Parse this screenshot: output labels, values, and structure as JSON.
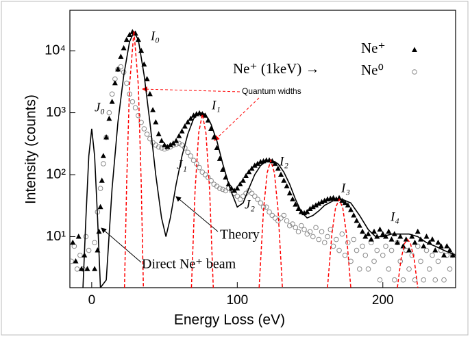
{
  "chart_data": {
    "type": "scatter",
    "x_label": "Energy Loss (eV)",
    "y_label": "Intensity (counts)",
    "xlim": [
      -15,
      250
    ],
    "ylim": [
      1.5,
      45000
    ],
    "log_y": true,
    "xticks": [
      0,
      100,
      200
    ],
    "yticks": [
      {
        "value": 10,
        "label": "10¹"
      },
      {
        "value": 100,
        "label": "10²"
      },
      {
        "value": 1000,
        "label": "10³"
      },
      {
        "value": 10000,
        "label": "10⁴"
      }
    ],
    "legend": "upper right",
    "series": [
      {
        "name": "Ne⁺",
        "marker": "triangle",
        "color": "#000000",
        "x": [
          -13,
          -11,
          -9,
          -7,
          -5,
          -3,
          2,
          4,
          5,
          6,
          7,
          8,
          10,
          12,
          14,
          16,
          18,
          20,
          22,
          24,
          26,
          28,
          30,
          32,
          34,
          36,
          38,
          40,
          42,
          44,
          46,
          48,
          50,
          52,
          54,
          56,
          58,
          60,
          62,
          64,
          66,
          68,
          70,
          72,
          74,
          76,
          78,
          80,
          82,
          84,
          86,
          88,
          90,
          92,
          94,
          96,
          98,
          100,
          102,
          104,
          106,
          108,
          110,
          112,
          114,
          116,
          118,
          120,
          122,
          124,
          126,
          128,
          130,
          132,
          134,
          136,
          138,
          140,
          142,
          144,
          146,
          148,
          150,
          152,
          154,
          156,
          158,
          160,
          162,
          164,
          166,
          168,
          170,
          172,
          174,
          176,
          178,
          180,
          182,
          184,
          186,
          188,
          190,
          192,
          194,
          196,
          198,
          200,
          202,
          204,
          206,
          208,
          210,
          212,
          214,
          216,
          218,
          220,
          222,
          224,
          226,
          228,
          230,
          232,
          234,
          236,
          238,
          240,
          242,
          244,
          246,
          248
        ],
        "values": [
          8,
          4,
          10,
          3,
          5,
          3,
          3,
          6,
          12,
          30,
          80,
          200,
          400,
          800,
          1500,
          3000,
          5000,
          8000,
          11000,
          15000,
          18000,
          20000,
          19000,
          15000,
          10000,
          6000,
          3500,
          2000,
          1100,
          700,
          450,
          350,
          300,
          280,
          300,
          320,
          350,
          420,
          500,
          600,
          700,
          800,
          900,
          950,
          980,
          950,
          900,
          750,
          550,
          400,
          270,
          180,
          120,
          90,
          70,
          60,
          55,
          60,
          70,
          80,
          95,
          110,
          125,
          140,
          150,
          160,
          165,
          170,
          170,
          165,
          150,
          125,
          100,
          80,
          65,
          50,
          40,
          33,
          28,
          25,
          24,
          25,
          28,
          30,
          32,
          34,
          36,
          38,
          40,
          41,
          42,
          40,
          42,
          38,
          35,
          32,
          27,
          22,
          18,
          15,
          12,
          10,
          11,
          9,
          12,
          10,
          13,
          11,
          10,
          12,
          9,
          11,
          8,
          10,
          7,
          9,
          6,
          10,
          8,
          12,
          9,
          7,
          10,
          8,
          9,
          6,
          8,
          7,
          5,
          7,
          6,
          5
        ]
      },
      {
        "name": "Ne⁰",
        "marker": "circle",
        "color": "#888888",
        "x": [
          -14,
          -12,
          -10,
          -8,
          -6,
          -4,
          -2,
          2,
          4,
          6,
          8,
          10,
          12,
          14,
          16,
          18,
          20,
          22,
          24,
          26,
          28,
          30,
          32,
          34,
          36,
          38,
          40,
          42,
          44,
          46,
          48,
          50,
          52,
          54,
          56,
          58,
          60,
          62,
          64,
          66,
          68,
          70,
          72,
          74,
          76,
          78,
          80,
          82,
          84,
          86,
          88,
          90,
          92,
          94,
          96,
          98,
          100,
          102,
          104,
          106,
          108,
          110,
          112,
          114,
          116,
          118,
          120,
          122,
          124,
          126,
          128,
          130,
          132,
          134,
          136,
          138,
          140,
          142,
          144,
          146,
          148,
          150,
          152,
          154,
          156,
          158,
          160,
          162,
          164,
          166,
          168,
          170,
          172,
          174,
          176,
          178,
          180,
          182,
          184,
          186,
          188,
          190,
          192,
          194,
          196,
          198,
          200,
          202,
          204,
          206,
          208,
          210,
          212,
          214,
          216,
          218,
          220,
          222,
          224,
          226,
          228,
          230,
          232,
          234,
          236,
          238,
          240,
          242,
          244,
          246,
          248
        ],
        "values": [
          4,
          7,
          3,
          5,
          3,
          10,
          6,
          8,
          25,
          60,
          150,
          400,
          1000,
          2000,
          3500,
          5000,
          5500,
          4500,
          3000,
          2000,
          1500,
          1200,
          900,
          700,
          550,
          450,
          380,
          330,
          300,
          280,
          270,
          260,
          270,
          280,
          300,
          310,
          320,
          300,
          270,
          230,
          200,
          170,
          150,
          130,
          110,
          100,
          90,
          80,
          70,
          65,
          60,
          58,
          55,
          60,
          55,
          50,
          45,
          40,
          45,
          50,
          55,
          50,
          45,
          40,
          35,
          30,
          30,
          25,
          22,
          20,
          18,
          20,
          22,
          18,
          15,
          16,
          14,
          12,
          15,
          13,
          11,
          12,
          10,
          14,
          9,
          12,
          8,
          10,
          13,
          7,
          9,
          6,
          11,
          5,
          8,
          4,
          9,
          6,
          3,
          7,
          5,
          3,
          8,
          4,
          6,
          2,
          5,
          7,
          3,
          6,
          2,
          8,
          4,
          2,
          6,
          3,
          5,
          2,
          7,
          4,
          2,
          6,
          3,
          5,
          2,
          4,
          6,
          2,
          5,
          3,
          5
        ]
      }
    ],
    "theory": {
      "color": "#000000",
      "x": [
        -6,
        -4,
        -2,
        0,
        2,
        4,
        6,
        10,
        14,
        18,
        22,
        26,
        29,
        32,
        36,
        40,
        44,
        48,
        51,
        54,
        58,
        62,
        66,
        70,
        74,
        78,
        82,
        86,
        90,
        95,
        100,
        104,
        108,
        112,
        116,
        120,
        124,
        128,
        132,
        136,
        140,
        144,
        148,
        152,
        156,
        160,
        166,
        172,
        178,
        184,
        190,
        195,
        200,
        206,
        212,
        218,
        224,
        230,
        236,
        242,
        250
      ],
      "values": [
        1.5,
        20,
        200,
        550,
        200,
        20,
        1.5,
        2,
        60,
        700,
        4000,
        14000,
        20000,
        15000,
        4000,
        700,
        100,
        20,
        10,
        20,
        70,
        200,
        450,
        800,
        1000,
        950,
        650,
        350,
        150,
        60,
        30,
        35,
        60,
        100,
        140,
        165,
        170,
        150,
        110,
        70,
        40,
        25,
        20,
        22,
        26,
        32,
        38,
        40,
        35,
        22,
        13,
        10,
        10,
        11,
        11,
        11,
        10,
        8,
        7,
        6,
        5
      ]
    },
    "quantum_widths": {
      "color": "#ff0000",
      "curves": [
        {
          "x": [
            22.5,
            24,
            26,
            29,
            32,
            34,
            35.5
          ],
          "values": [
            1.5,
            74,
            2750,
            21000,
            2750,
            74,
            1.5
          ]
        },
        {
          "x": [
            68.5,
            71,
            73.5,
            76,
            78.5,
            81,
            83.5
          ],
          "values": [
            1.5,
            55,
            470,
            950,
            470,
            55,
            1.5
          ]
        },
        {
          "x": [
            115,
            118,
            120.5,
            123,
            125.5,
            128,
            131
          ],
          "values": [
            1.5,
            27,
            107,
            170,
            107,
            27,
            1.5
          ]
        },
        {
          "x": [
            162,
            165,
            167.5,
            170,
            172.5,
            175,
            178
          ],
          "values": [
            1.5,
            11,
            29,
            40,
            29,
            11,
            1.5
          ]
        },
        {
          "x": [
            210,
            212.5,
            215,
            217,
            219,
            221.5,
            224
          ],
          "values": [
            1.5,
            4.3,
            7.8,
            9,
            7.8,
            4.3,
            1.5
          ]
        }
      ]
    },
    "annotations": [
      "I₀",
      "I₁",
      "I₂",
      "I₃",
      "I₄",
      "J₀",
      "J₁",
      "J₂",
      "Ne⁺ (1keV) →",
      "Quantum widths",
      "Theory",
      "Direct Ne⁺ beam"
    ]
  }
}
